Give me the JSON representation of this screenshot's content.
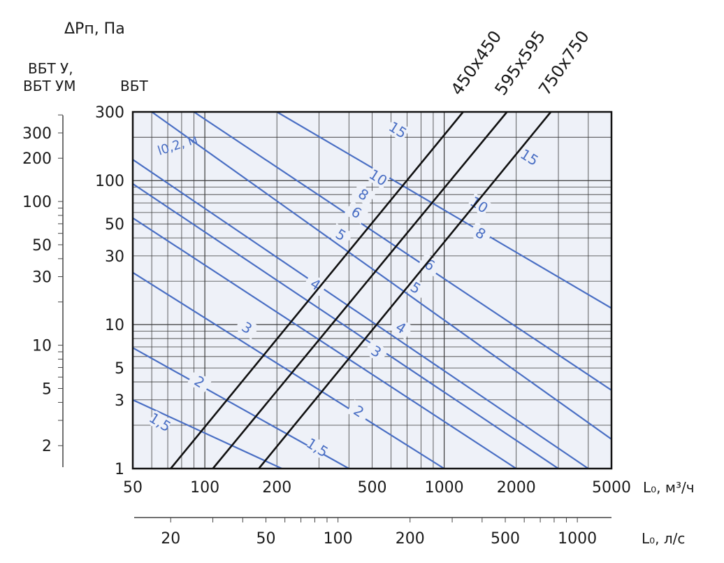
{
  "chart_data": {
    "type": "line",
    "title": "",
    "y_axis_label": "ΔPп, Па",
    "y_axis_left_header": "ВБТ У,\nВБТ УМ",
    "y_axis_main_header": "ВБТ",
    "x_axis_label": "L₀, м³/ч",
    "x2_axis_label": "L₀, л/с",
    "x_scale": "log",
    "y_scale": "log",
    "xlim": [
      50,
      5000
    ],
    "ylim": [
      1,
      300
    ],
    "y_ticks_main": [
      "300",
      "100",
      "50",
      "30",
      "10",
      "5",
      "3",
      "1"
    ],
    "y_tick_values_main": [
      300,
      100,
      50,
      30,
      10,
      5,
      3,
      1
    ],
    "y_ticks_left": [
      "300",
      "200",
      "100",
      "50",
      "30",
      "10",
      "5",
      "2"
    ],
    "y_tick_values_left": [
      300,
      200,
      100,
      50,
      30,
      10,
      5,
      2
    ],
    "x_ticks": [
      "50",
      "100",
      "200",
      "500",
      "1000",
      "2000",
      "5000"
    ],
    "x_tick_values": [
      50,
      100,
      200,
      500,
      1000,
      2000,
      5000
    ],
    "x2_ticks": [
      "20",
      "50",
      "100",
      "200",
      "500",
      "1000"
    ],
    "x2_tick_values": [
      20,
      50,
      100,
      200,
      500,
      1000
    ],
    "throw_label": "l0,2, м",
    "series": [
      {
        "name": "450x450",
        "x": [
          72,
          1200
        ],
        "y": [
          1,
          300
        ]
      },
      {
        "name": "595x595",
        "x": [
          108,
          1830
        ],
        "y": [
          1,
          300
        ]
      },
      {
        "name": "750x750",
        "x": [
          168,
          2790
        ],
        "y": [
          1,
          300
        ]
      }
    ],
    "isolines": [
      {
        "label": "1,5",
        "x": [
          50,
          210
        ],
        "y": [
          3.0,
          1
        ]
      },
      {
        "label": "2",
        "x": [
          50,
          400
        ],
        "y": [
          6.9,
          1
        ]
      },
      {
        "label": "3",
        "x": [
          50,
          1000
        ],
        "y": [
          23,
          1
        ]
      },
      {
        "label": "4",
        "x": [
          50,
          2000
        ],
        "y": [
          55,
          1
        ]
      },
      {
        "label": "5",
        "x": [
          50,
          3000
        ],
        "y": [
          95,
          1
        ]
      },
      {
        "label": "6",
        "x": [
          50,
          4000
        ],
        "y": [
          140,
          1
        ]
      },
      {
        "label": "8",
        "x": [
          60,
          5000
        ],
        "y": [
          300,
          1.6
        ]
      },
      {
        "label": "10",
        "x": [
          90,
          5000
        ],
        "y": [
          300,
          3.5
        ]
      },
      {
        "label": "15",
        "x": [
          200,
          5000
        ],
        "y": [
          300,
          13
        ]
      }
    ],
    "isoline_labels": [
      {
        "label": "1,5",
        "x": 65,
        "y": 2.1
      },
      {
        "label": "2",
        "x": 95,
        "y": 4.0
      },
      {
        "label": "3",
        "x": 150,
        "y": 9.5
      },
      {
        "label": "4",
        "x": 290,
        "y": 19
      },
      {
        "label": "5",
        "x": 370,
        "y": 42
      },
      {
        "label": "6",
        "x": 430,
        "y": 60
      },
      {
        "label": "8",
        "x": 460,
        "y": 80
      },
      {
        "label": "10",
        "x": 530,
        "y": 105
      },
      {
        "label": "15",
        "x": 640,
        "y": 225
      },
      {
        "label": "1,5",
        "x": 295,
        "y": 1.4
      },
      {
        "label": "2",
        "x": 440,
        "y": 2.5
      },
      {
        "label": "3",
        "x": 520,
        "y": 6.5
      },
      {
        "label": "4",
        "x": 660,
        "y": 9.5
      },
      {
        "label": "5",
        "x": 760,
        "y": 18
      },
      {
        "label": "6",
        "x": 870,
        "y": 26
      },
      {
        "label": "8",
        "x": 1420,
        "y": 43
      },
      {
        "label": "10",
        "x": 1400,
        "y": 68
      },
      {
        "label": "15",
        "x": 2270,
        "y": 145
      }
    ],
    "grid": true,
    "colors": {
      "isoline": "#4a6fc4",
      "outlet": "#111111",
      "plot_bg": "#eef1f8",
      "grid": "#3a3a3a"
    }
  }
}
